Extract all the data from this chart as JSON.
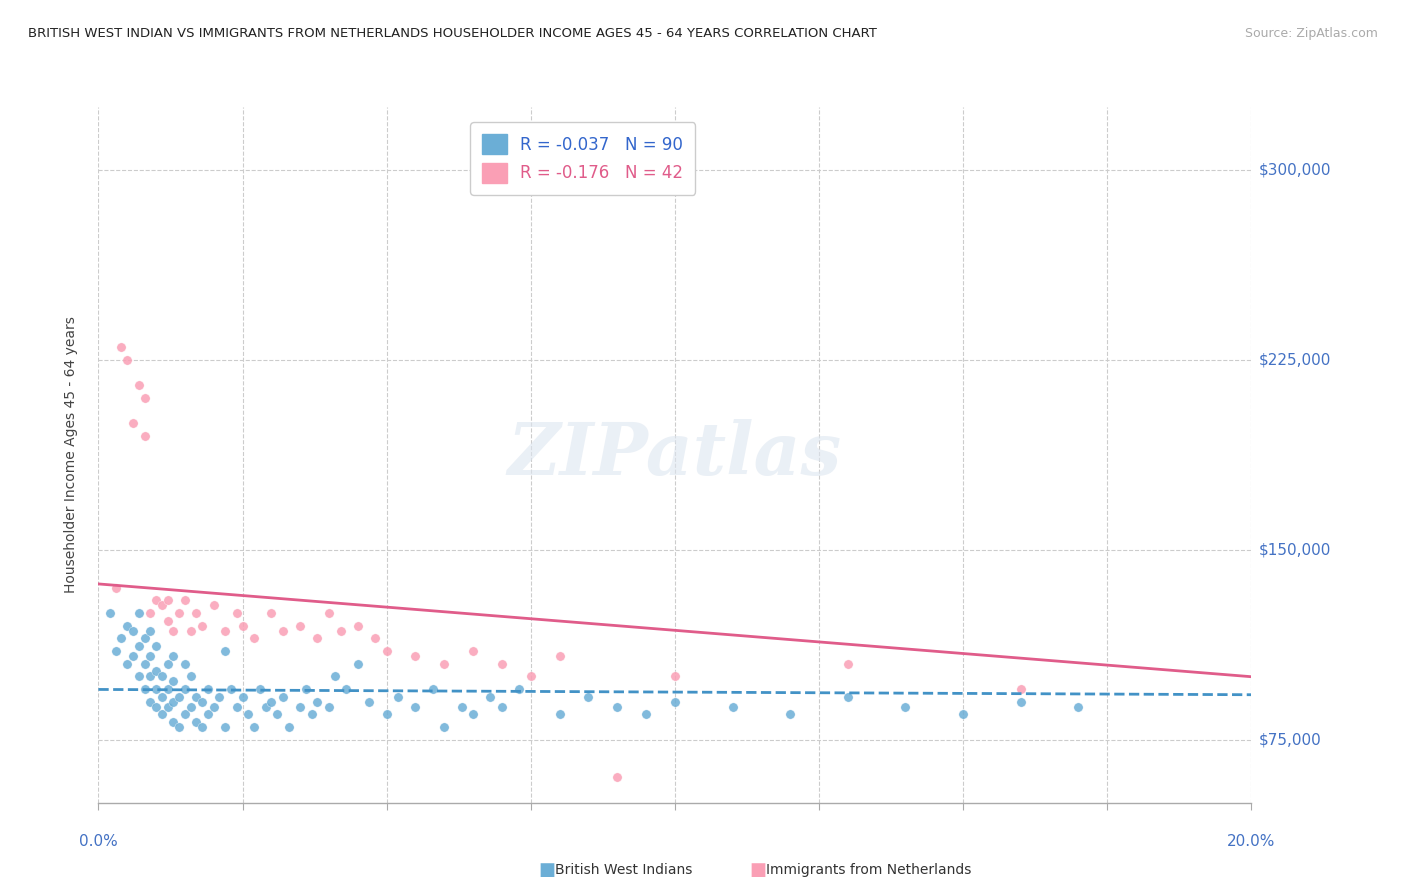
{
  "title": "BRITISH WEST INDIAN VS IMMIGRANTS FROM NETHERLANDS HOUSEHOLDER INCOME AGES 45 - 64 YEARS CORRELATION CHART",
  "source": "Source: ZipAtlas.com",
  "ylabel": "Householder Income Ages 45 - 64 years",
  "yticks": [
    75000,
    150000,
    225000,
    300000
  ],
  "xlim": [
    0.0,
    0.2
  ],
  "ylim": [
    50000,
    325000
  ],
  "blue_R": -0.037,
  "blue_N": 90,
  "pink_R": -0.176,
  "pink_N": 42,
  "blue_color": "#6baed6",
  "pink_color": "#fa9fb5",
  "blue_line_color": "#4292c6",
  "pink_line_color": "#e05c8a",
  "legend1_label": "British West Indians",
  "legend2_label": "Immigrants from Netherlands",
  "blue_scatter_x": [
    0.002,
    0.003,
    0.004,
    0.005,
    0.005,
    0.006,
    0.006,
    0.007,
    0.007,
    0.007,
    0.008,
    0.008,
    0.008,
    0.009,
    0.009,
    0.009,
    0.009,
    0.01,
    0.01,
    0.01,
    0.01,
    0.011,
    0.011,
    0.011,
    0.012,
    0.012,
    0.012,
    0.013,
    0.013,
    0.013,
    0.013,
    0.014,
    0.014,
    0.015,
    0.015,
    0.015,
    0.016,
    0.016,
    0.017,
    0.017,
    0.018,
    0.018,
    0.019,
    0.019,
    0.02,
    0.021,
    0.022,
    0.022,
    0.023,
    0.024,
    0.025,
    0.026,
    0.027,
    0.028,
    0.029,
    0.03,
    0.031,
    0.032,
    0.033,
    0.035,
    0.036,
    0.037,
    0.038,
    0.04,
    0.041,
    0.043,
    0.045,
    0.047,
    0.05,
    0.052,
    0.055,
    0.058,
    0.06,
    0.063,
    0.065,
    0.068,
    0.07,
    0.073,
    0.08,
    0.085,
    0.09,
    0.095,
    0.1,
    0.11,
    0.12,
    0.13,
    0.14,
    0.15,
    0.16,
    0.17
  ],
  "blue_scatter_y": [
    125000,
    110000,
    115000,
    105000,
    120000,
    108000,
    118000,
    100000,
    112000,
    125000,
    95000,
    105000,
    115000,
    90000,
    100000,
    108000,
    118000,
    88000,
    95000,
    102000,
    112000,
    85000,
    92000,
    100000,
    88000,
    95000,
    105000,
    82000,
    90000,
    98000,
    108000,
    80000,
    92000,
    85000,
    95000,
    105000,
    88000,
    100000,
    82000,
    92000,
    80000,
    90000,
    85000,
    95000,
    88000,
    92000,
    80000,
    110000,
    95000,
    88000,
    92000,
    85000,
    80000,
    95000,
    88000,
    90000,
    85000,
    92000,
    80000,
    88000,
    95000,
    85000,
    90000,
    88000,
    100000,
    95000,
    105000,
    90000,
    85000,
    92000,
    88000,
    95000,
    80000,
    88000,
    85000,
    92000,
    88000,
    95000,
    85000,
    92000,
    88000,
    85000,
    90000,
    88000,
    85000,
    92000,
    88000,
    85000,
    90000,
    88000
  ],
  "pink_scatter_x": [
    0.003,
    0.004,
    0.005,
    0.006,
    0.007,
    0.008,
    0.008,
    0.009,
    0.01,
    0.011,
    0.012,
    0.012,
    0.013,
    0.014,
    0.015,
    0.016,
    0.017,
    0.018,
    0.02,
    0.022,
    0.024,
    0.025,
    0.027,
    0.03,
    0.032,
    0.035,
    0.038,
    0.04,
    0.042,
    0.045,
    0.048,
    0.05,
    0.055,
    0.06,
    0.065,
    0.07,
    0.075,
    0.08,
    0.09,
    0.1,
    0.13,
    0.16
  ],
  "pink_scatter_y": [
    135000,
    230000,
    225000,
    200000,
    215000,
    195000,
    210000,
    125000,
    130000,
    128000,
    122000,
    130000,
    118000,
    125000,
    130000,
    118000,
    125000,
    120000,
    128000,
    118000,
    125000,
    120000,
    115000,
    125000,
    118000,
    120000,
    115000,
    125000,
    118000,
    120000,
    115000,
    110000,
    108000,
    105000,
    110000,
    105000,
    100000,
    108000,
    60000,
    100000,
    105000,
    95000
  ]
}
